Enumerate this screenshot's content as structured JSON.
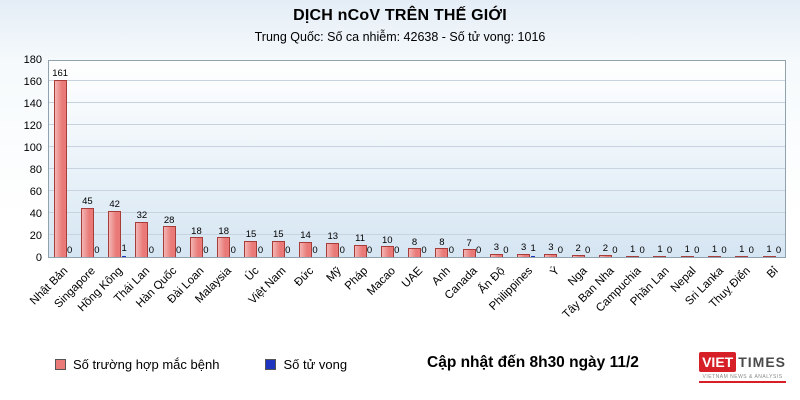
{
  "chart_data": {
    "type": "bar",
    "title": "DỊCH nCoV TRÊN THẾ GIỚI",
    "subtitle": "Trung Quốc: Số ca nhiễm: 42638 - Số tử vong: 1016",
    "categories": [
      "Nhật Bản",
      "Singapore",
      "Hồng Kông",
      "Thái Lan",
      "Hàn Quốc",
      "Đài Loan",
      "Malaysia",
      "Úc",
      "Việt Nam",
      "Đức",
      "Mỹ",
      "Pháp",
      "Macao",
      "UAE",
      "Anh",
      "Canada",
      "Ấn Độ",
      "Philippines",
      "Ý",
      "Nga",
      "Tây Ban Nha",
      "Campuchia",
      "Phần Lan",
      "Nepal",
      "Sri Lanka",
      "Thuỵ Điển",
      "Bỉ"
    ],
    "series": [
      {
        "name": "Số trường hợp mắc bệnh",
        "color": "#e97a78",
        "values": [
          161,
          45,
          42,
          32,
          28,
          18,
          18,
          15,
          15,
          14,
          13,
          11,
          10,
          8,
          8,
          7,
          3,
          3,
          3,
          2,
          2,
          1,
          1,
          1,
          1,
          1,
          1
        ]
      },
      {
        "name": "Số tử vong",
        "color": "#1f35c0",
        "values": [
          0,
          0,
          1,
          0,
          0,
          0,
          0,
          0,
          0,
          0,
          0,
          0,
          0,
          0,
          0,
          0,
          0,
          1,
          0,
          0,
          0,
          0,
          0,
          0,
          0,
          0,
          0
        ]
      }
    ],
    "xlabel": "",
    "ylabel": "",
    "ylim": [
      0,
      180
    ],
    "ytick_step": 20,
    "grid": true,
    "legend_position": "bottom"
  },
  "footer": {
    "update_text": "Cập nhật đến 8h30 ngày 11/2",
    "logo": {
      "part1": "VIET",
      "part2": "TIMES",
      "tagline": "VIETNAM NEWS & ANALYSIS"
    }
  }
}
